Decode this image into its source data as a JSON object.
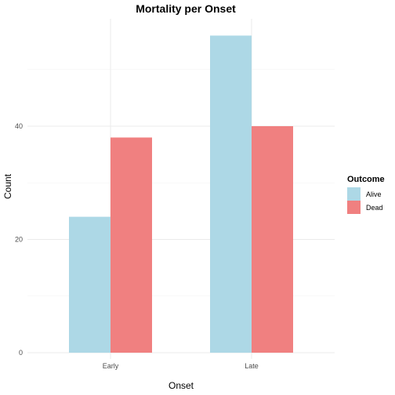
{
  "colors": {
    "alive": "#add8e6",
    "dead": "#f08080"
  },
  "chart_data": {
    "type": "bar",
    "title": "Mortality per Onset",
    "xlabel": "Onset",
    "ylabel": "Count",
    "categories": [
      "Early",
      "Late"
    ],
    "series": [
      {
        "name": "Alive",
        "values": [
          24,
          56
        ],
        "color": "#add8e6"
      },
      {
        "name": "Dead",
        "values": [
          38,
          40
        ],
        "color": "#f08080"
      }
    ],
    "yticks": [
      0,
      20,
      40
    ],
    "ylim": [
      0,
      59
    ],
    "grid": true,
    "legend": {
      "title": "Outcome",
      "position": "right"
    }
  }
}
